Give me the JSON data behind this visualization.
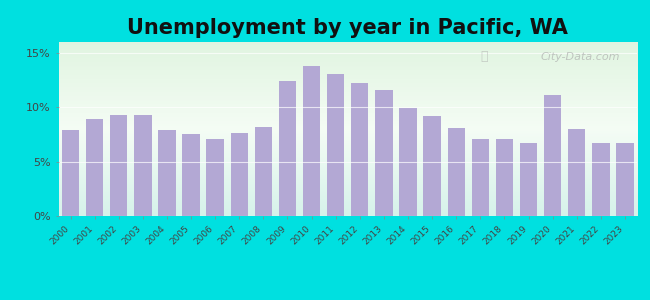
{
  "title": "Unemployment by year in Pacific, WA",
  "years": [
    2000,
    2001,
    2002,
    2003,
    2004,
    2005,
    2006,
    2007,
    2008,
    2009,
    2010,
    2011,
    2012,
    2013,
    2014,
    2015,
    2016,
    2017,
    2018,
    2019,
    2020,
    2021,
    2022,
    2023
  ],
  "values": [
    7.9,
    8.9,
    9.3,
    9.3,
    7.9,
    7.5,
    7.1,
    7.6,
    8.2,
    12.4,
    13.8,
    13.1,
    12.2,
    11.6,
    9.9,
    9.2,
    8.1,
    7.1,
    7.1,
    6.7,
    11.1,
    8.0,
    6.7,
    6.7
  ],
  "bar_color": "#b3a8d4",
  "background_outer": "#00e0e0",
  "yticks": [
    0,
    5,
    10,
    15
  ],
  "ytick_labels": [
    "0%",
    "5%",
    "10%",
    "15%"
  ],
  "ylim": [
    0,
    16
  ],
  "title_fontsize": 15,
  "watermark": "City-Data.com"
}
